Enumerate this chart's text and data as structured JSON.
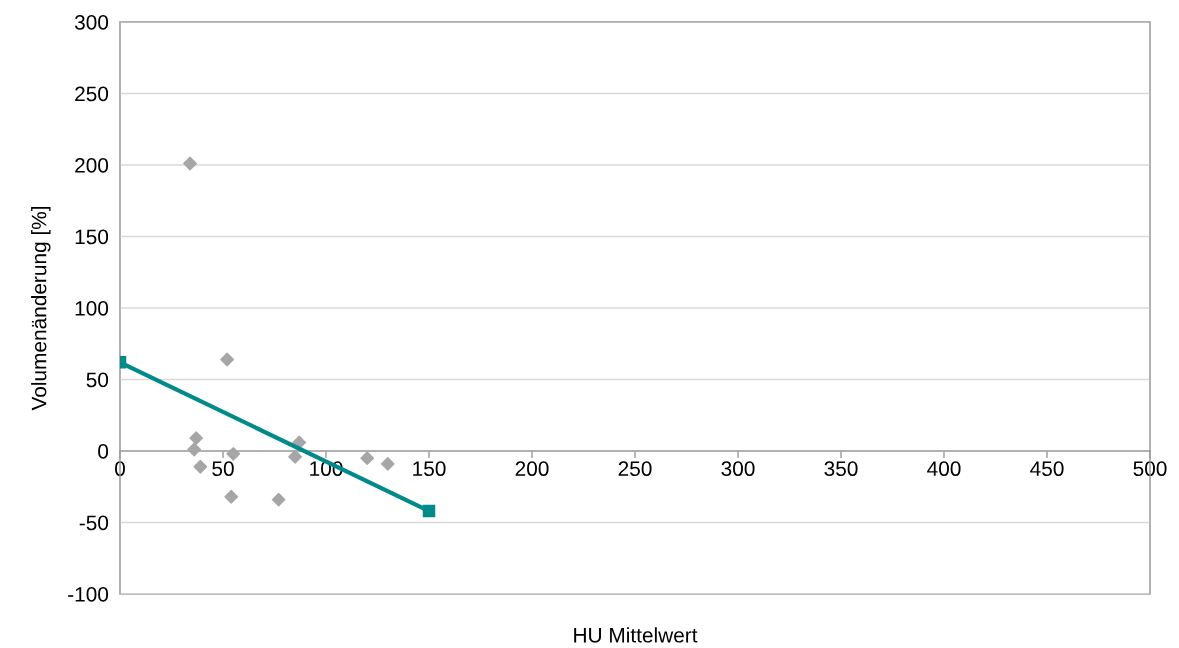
{
  "chart_data": {
    "type": "scatter",
    "xlabel": "HU Mittelwert",
    "ylabel": "Volumenänderung [%]",
    "xlim": [
      0,
      500
    ],
    "xticks": [
      0,
      50,
      100,
      150,
      200,
      250,
      300,
      350,
      400,
      450,
      500
    ],
    "ylim": [
      -100,
      300
    ],
    "yticks": [
      -100,
      -50,
      0,
      50,
      100,
      150,
      200,
      250,
      300
    ],
    "grid": "y",
    "legend": false,
    "series": [
      {
        "color": "#a6a6a6",
        "marker": "diamond",
        "x": [
          34,
          52,
          37,
          36,
          39,
          55,
          54,
          77,
          85,
          87,
          120,
          130
        ],
        "values": [
          201,
          64,
          9,
          1,
          -11,
          -2,
          -32,
          -34,
          -4,
          6,
          -5,
          -9
        ]
      },
      {
        "type": "line",
        "color": "#008b8b",
        "marker": "square",
        "line_style": "solid",
        "x": [
          0,
          150
        ],
        "values": [
          62,
          -42
        ]
      }
    ]
  }
}
